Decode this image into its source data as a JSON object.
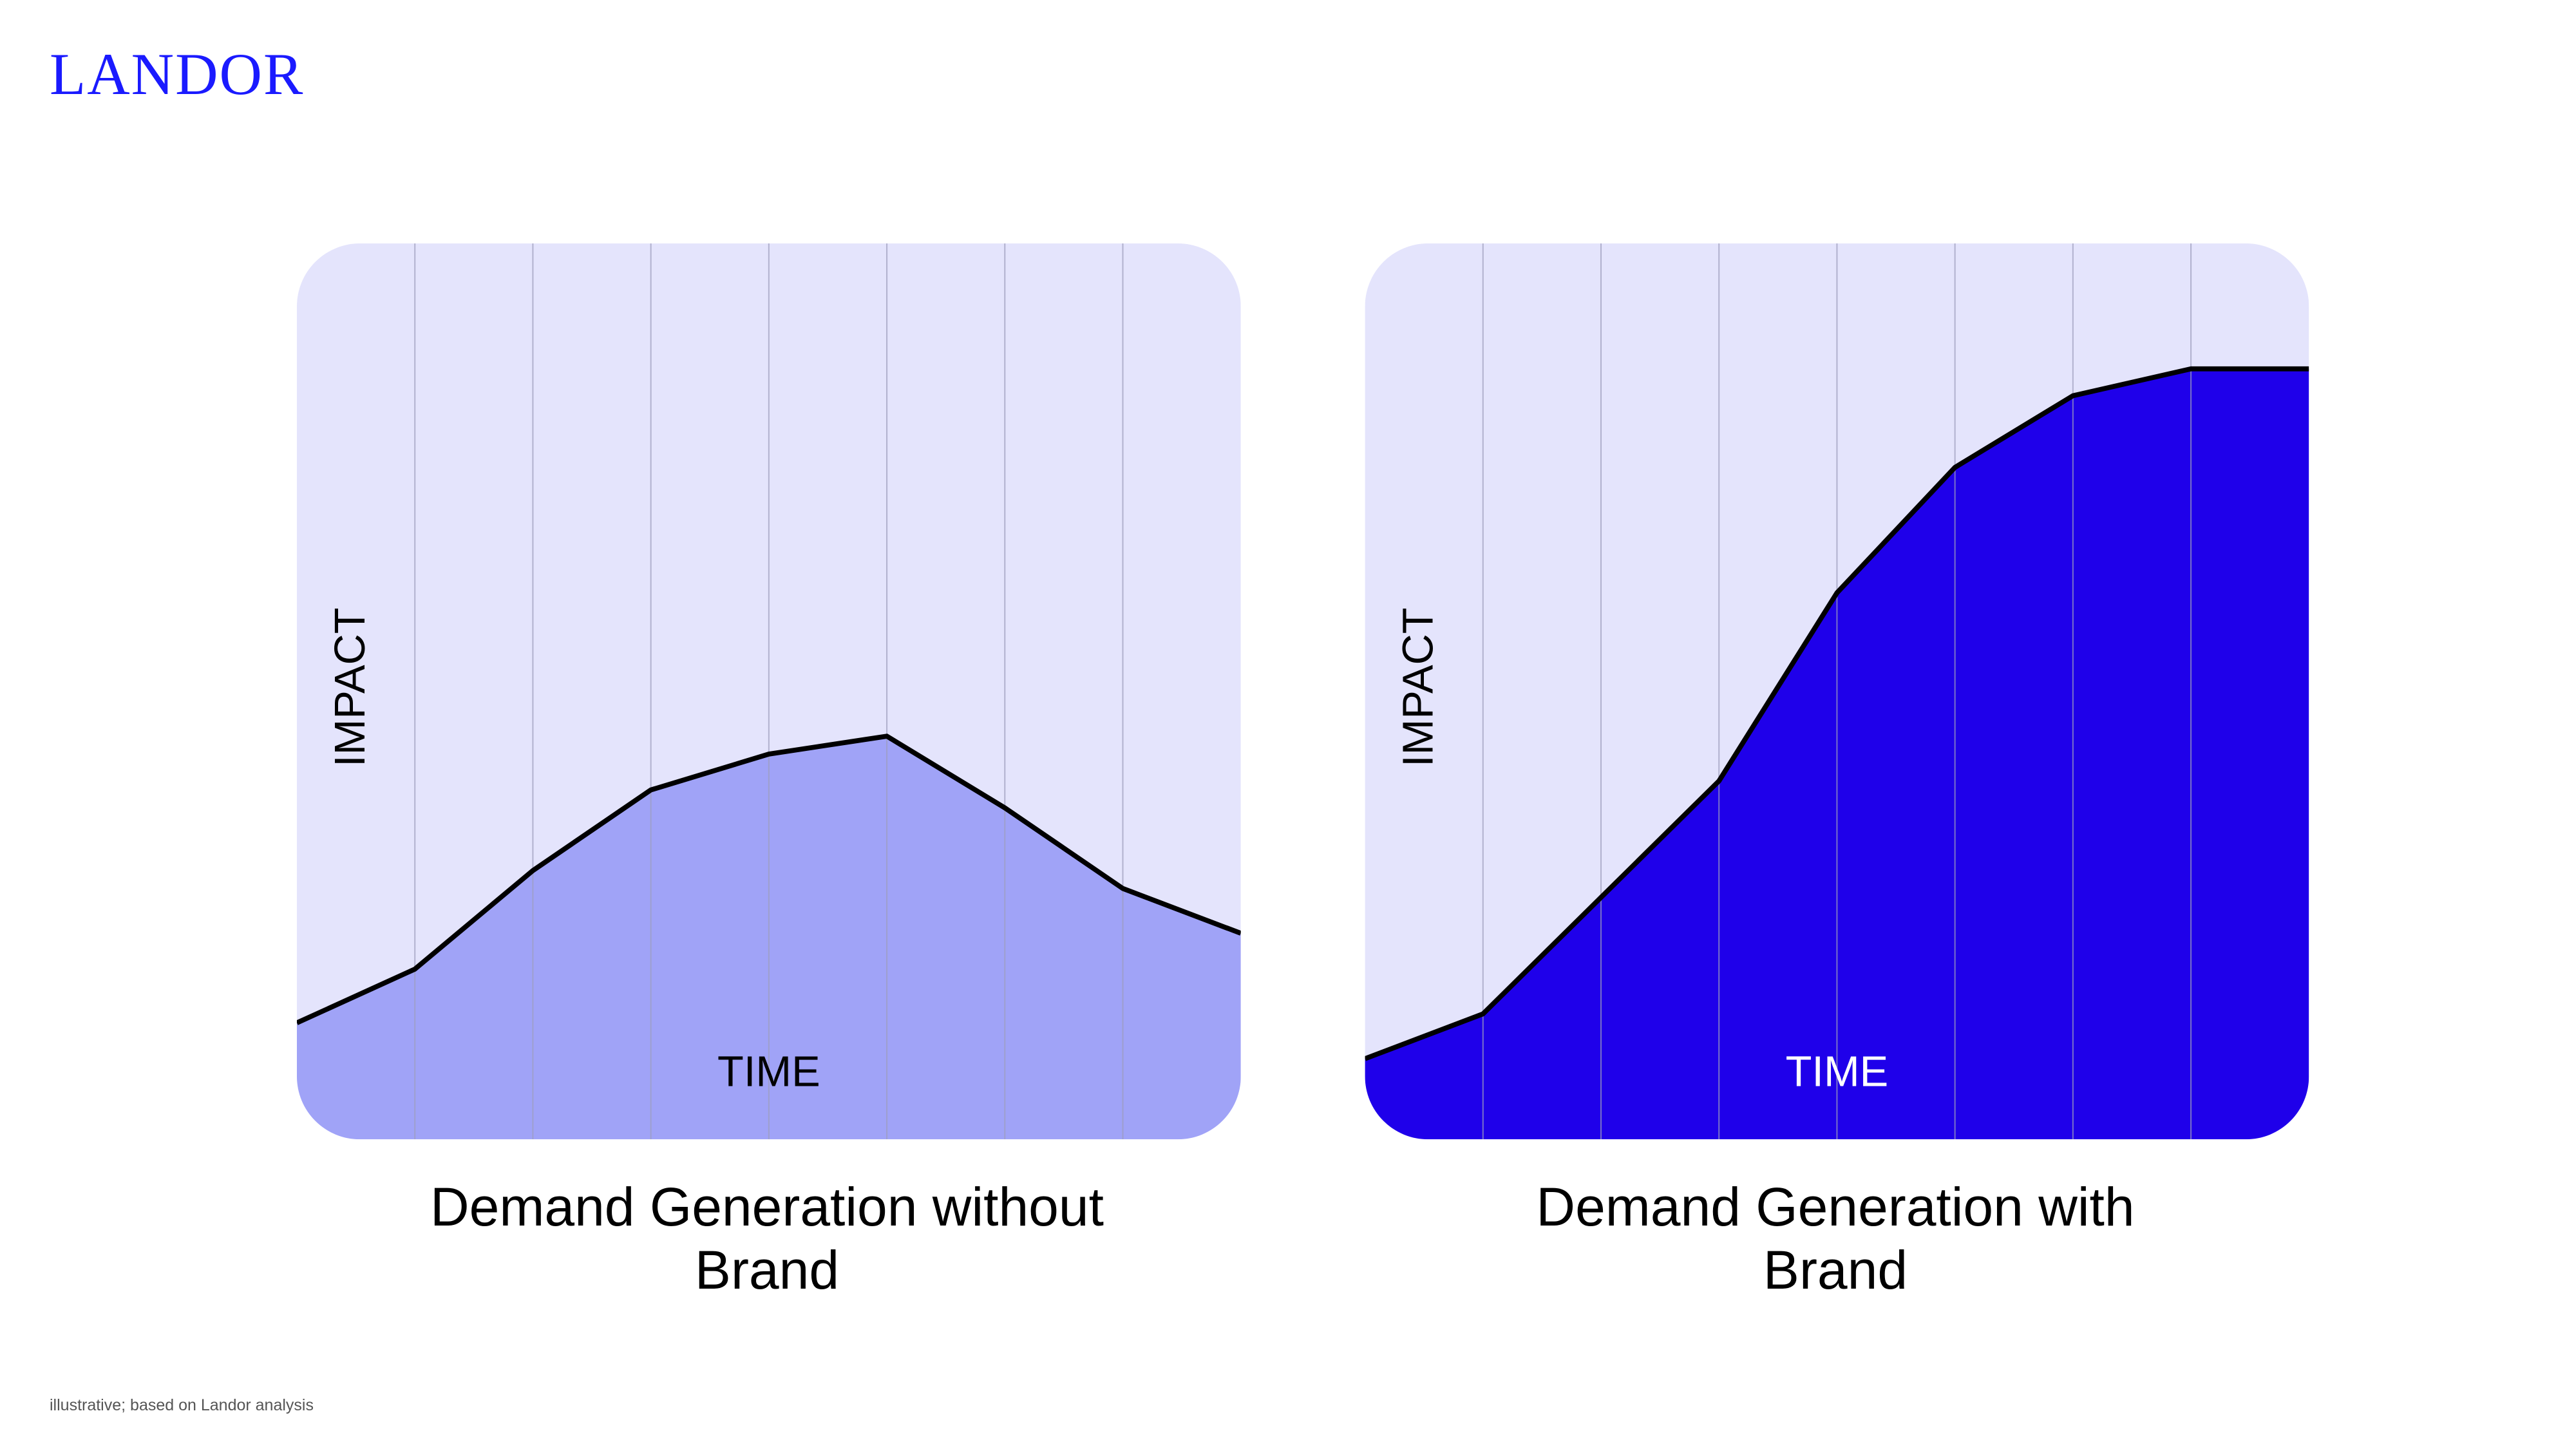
{
  "header": {
    "logo": "LANDOR"
  },
  "chart_data": [
    {
      "type": "area",
      "title": "Demand Generation without Brand",
      "x_label": "TIME",
      "y_label": "IMPACT",
      "categories": [
        null,
        null,
        null,
        null,
        null,
        null,
        null,
        null,
        null
      ],
      "values": [
        13,
        19,
        30,
        39,
        43,
        45,
        37,
        28,
        23
      ],
      "color": "#a0a3f7",
      "line_color": "#000000",
      "background": "#e4e4fc",
      "x_label_color": "#000000",
      "ylim": [
        0,
        100
      ],
      "grid": true
    },
    {
      "type": "area",
      "title": "Demand Generation with Brand",
      "x_label": "TIME",
      "y_label": "IMPACT",
      "categories": [
        null,
        null,
        null,
        null,
        null,
        null,
        null,
        null,
        null
      ],
      "values": [
        9,
        14,
        27,
        40,
        61,
        75,
        83,
        86,
        86
      ],
      "color": "#1f00ea",
      "line_color": "#000000",
      "background": "#e4e4fc",
      "x_label_color": "#ffffff",
      "ylim": [
        0,
        100
      ],
      "grid": true
    }
  ],
  "footnote": "illustrative; based on Landor analysis"
}
